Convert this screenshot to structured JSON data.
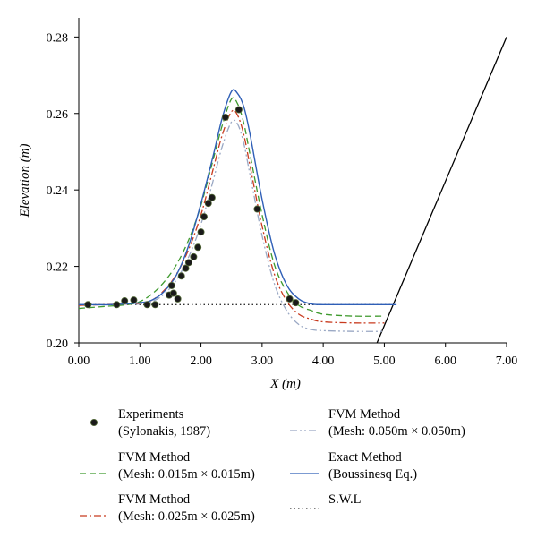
{
  "chart_data": {
    "type": "line",
    "xlabel": "X (m)",
    "ylabel": "Elevation (m)",
    "xlim": [
      0,
      7
    ],
    "ylim": [
      0.2,
      0.285
    ],
    "xticks": [
      0,
      1,
      2,
      3,
      4,
      5,
      6,
      7
    ],
    "xtick_labels": [
      "0.00",
      "1.00",
      "2.00",
      "3.00",
      "4.00",
      "5.00",
      "6.00",
      "7.00"
    ],
    "yticks": [
      0.2,
      0.22,
      0.24,
      0.26,
      0.28
    ],
    "ytick_labels": [
      "0.20",
      "0.22",
      "0.24",
      "0.26",
      "0.28"
    ],
    "grid": false,
    "legend_position": "bottom",
    "series": [
      {
        "key": "experiments",
        "legend": [
          "Experiments",
          "(Sylonakis, 1987)"
        ],
        "style": "markers",
        "color": "#1a1a1a",
        "x": [
          0.15,
          0.62,
          0.75,
          0.9,
          1.12,
          1.25,
          1.48,
          1.52,
          1.55,
          1.62,
          1.68,
          1.75,
          1.8,
          1.88,
          1.95,
          2.0,
          2.05,
          2.12,
          2.18,
          2.4,
          2.62,
          2.92,
          3.45,
          3.55
        ],
        "y": [
          0.21,
          0.21,
          0.211,
          0.2112,
          0.21,
          0.21,
          0.2125,
          0.215,
          0.213,
          0.2115,
          0.2175,
          0.2195,
          0.221,
          0.2225,
          0.225,
          0.229,
          0.233,
          0.2365,
          0.238,
          0.259,
          0.261,
          0.235,
          0.2115,
          0.2105
        ]
      },
      {
        "key": "fvm015",
        "legend": [
          "FVM Method",
          "(Mesh: 0.015m × 0.015m)"
        ],
        "style": "dashed",
        "color": "#3f9a2e",
        "x": [
          0,
          0.4,
          0.8,
          1.0,
          1.2,
          1.4,
          1.6,
          1.8,
          2.0,
          2.2,
          2.35,
          2.5,
          2.6,
          2.7,
          2.8,
          3.0,
          3.2,
          3.4,
          3.6,
          3.8,
          4.0,
          4.5,
          5.0
        ],
        "y": [
          0.209,
          0.2095,
          0.21,
          0.2108,
          0.2128,
          0.216,
          0.2205,
          0.227,
          0.236,
          0.248,
          0.257,
          0.2638,
          0.2625,
          0.2575,
          0.2495,
          0.2335,
          0.2205,
          0.2135,
          0.2098,
          0.2085,
          0.2075,
          0.207,
          0.207
        ]
      },
      {
        "key": "fvm025",
        "legend": [
          "FVM Method",
          "(Mesh: 0.025m × 0.025m)"
        ],
        "style": "dashdot",
        "color": "#c83a1e",
        "x": [
          0,
          0.4,
          0.8,
          1.0,
          1.2,
          1.4,
          1.6,
          1.8,
          2.0,
          2.2,
          2.35,
          2.5,
          2.6,
          2.7,
          2.8,
          3.0,
          3.2,
          3.4,
          3.6,
          3.8,
          4.0,
          4.5,
          5.0
        ],
        "y": [
          0.2098,
          0.21,
          0.2102,
          0.2104,
          0.2112,
          0.2138,
          0.218,
          0.2245,
          0.2335,
          0.2455,
          0.2545,
          0.2605,
          0.2595,
          0.2545,
          0.2465,
          0.2305,
          0.218,
          0.211,
          0.2075,
          0.2062,
          0.2055,
          0.2052,
          0.2052
        ]
      },
      {
        "key": "fvm050",
        "legend": [
          "FVM Method",
          "(Mesh: 0.050m × 0.050m)"
        ],
        "style": "dashdotdot",
        "color": "#9aa8c4",
        "x": [
          0,
          0.4,
          0.8,
          1.0,
          1.2,
          1.4,
          1.6,
          1.8,
          2.0,
          2.2,
          2.35,
          2.5,
          2.6,
          2.7,
          2.8,
          3.0,
          3.2,
          3.4,
          3.6,
          3.8,
          4.0,
          4.5,
          5.0
        ],
        "y": [
          0.21,
          0.21,
          0.2101,
          0.2102,
          0.2108,
          0.2128,
          0.2165,
          0.2225,
          0.231,
          0.2425,
          0.2515,
          0.2578,
          0.2572,
          0.2522,
          0.2442,
          0.228,
          0.2155,
          0.2085,
          0.2048,
          0.2035,
          0.2032,
          0.203,
          0.203
        ]
      },
      {
        "key": "exact",
        "legend": [
          "Exact Method",
          "(Boussinesq Eq.)"
        ],
        "style": "solid",
        "color": "#2f5fb7",
        "x": [
          0,
          0.5,
          1.0,
          1.2,
          1.4,
          1.6,
          1.8,
          2.0,
          2.2,
          2.35,
          2.5,
          2.6,
          2.7,
          2.8,
          3.0,
          3.2,
          3.4,
          3.6,
          3.8,
          4.0,
          4.5,
          5.0,
          5.2
        ],
        "y": [
          0.21,
          0.21,
          0.2105,
          0.2112,
          0.2135,
          0.2178,
          0.2255,
          0.2365,
          0.249,
          0.259,
          0.2658,
          0.2652,
          0.2618,
          0.2548,
          0.2375,
          0.2235,
          0.2152,
          0.2115,
          0.2102,
          0.21,
          0.21,
          0.21,
          0.21
        ]
      },
      {
        "key": "swl",
        "legend": [
          "S.W.L"
        ],
        "style": "dotted",
        "color": "#333333",
        "x": [
          0,
          5.12
        ],
        "y": [
          0.21,
          0.21
        ]
      },
      {
        "key": "slope",
        "legend": [],
        "style": "solid",
        "color": "#000000",
        "x": [
          4.88,
          7.0
        ],
        "y": [
          0.2,
          0.28
        ]
      }
    ],
    "legend_layout": [
      [
        "experiments",
        "fvm050"
      ],
      [
        "fvm015",
        "exact"
      ],
      [
        "fvm025",
        "swl"
      ]
    ]
  }
}
